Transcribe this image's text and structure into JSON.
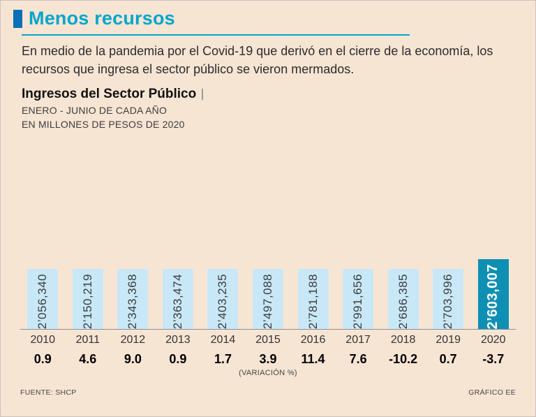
{
  "header": {
    "title": "Menos recursos"
  },
  "intro": {
    "text": "En medio de la pandemia por el Covid-19 que derivó en el cierre de la economía, los recursos que ingresa el sector público se vieron mermados."
  },
  "chart": {
    "title": "Ingresos del Sector Público",
    "subtitle1": "ENERO - JUNIO DE CADA AÑO",
    "subtitle2": "EN MILLONES DE PESOS DE 2020"
  },
  "chart_data": {
    "type": "bar",
    "title": "Ingresos del Sector Público",
    "subtitle": "ENERO - JUNIO DE CADA AÑO, EN MILLONES DE PESOS DE 2020",
    "categories": [
      "2010",
      "2011",
      "2012",
      "2013",
      "2014",
      "2015",
      "2016",
      "2017",
      "2018",
      "2019",
      "2020"
    ],
    "values": [
      2056340,
      2150219,
      2343368,
      2363474,
      2403235,
      2497088,
      2781188,
      2991656,
      2686385,
      2703996,
      2603007
    ],
    "value_labels": [
      "2’056,340",
      "2’150,219",
      "2’343,368",
      "2’363,474",
      "2’403,235",
      "2’497,088",
      "2’781,188",
      "2’991,656",
      "2’686,385",
      "2’703,996",
      "2’603,007"
    ],
    "variation_pct": [
      0.9,
      4.6,
      9.0,
      0.9,
      1.7,
      3.9,
      11.4,
      7.6,
      -10.2,
      0.7,
      -3.7
    ],
    "variation_labels": [
      "0.9",
      "4.6",
      "9.0",
      "0.9",
      "1.7",
      "3.9",
      "11.4",
      "7.6",
      "-10.2",
      "0.7",
      "-3.7"
    ],
    "variation_caption": "(VARIACIÓN %)",
    "ylim": [
      1500000,
      3050000
    ],
    "axis_note": "baseline truncated (bars not zero-based)",
    "grid": false,
    "legend": "none",
    "highlight_index": 10,
    "colors": {
      "bar": "#c9e8f7",
      "highlight": "#0e90b4",
      "label": "#3b3b3b",
      "highlight_label": "#ffffff",
      "accent": "#00a6cb",
      "marker": "#0d6fb8"
    }
  },
  "footer": {
    "source": "FUENTE: SHCP",
    "credit": "GRÁFICO EE"
  }
}
